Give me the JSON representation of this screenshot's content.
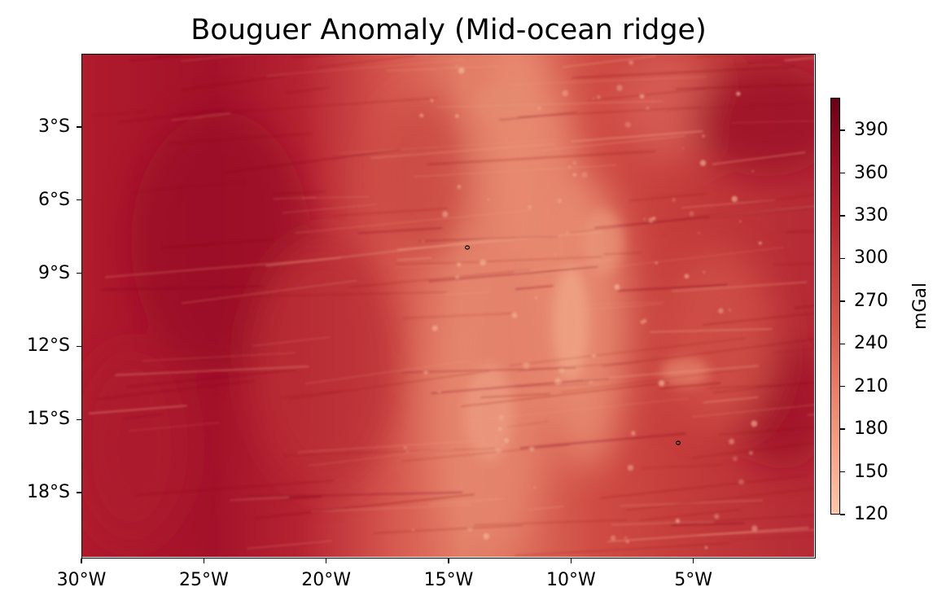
{
  "title": "Bouguer Anomaly (Mid-ocean ridge)",
  "x_axis": {
    "ticks": [
      "30°W",
      "25°W",
      "20°W",
      "15°W",
      "10°W",
      "5°W"
    ],
    "tick_values": [
      -30,
      -25,
      -20,
      -15,
      -10,
      -5
    ],
    "range": [
      -30,
      0
    ]
  },
  "y_axis": {
    "ticks": [
      "3°S",
      "6°S",
      "9°S",
      "12°S",
      "15°S",
      "18°S"
    ],
    "tick_values": [
      -3,
      -6,
      -9,
      -12,
      -15,
      -18
    ],
    "range": [
      -20.7,
      0
    ]
  },
  "colorbar": {
    "label": "mGal",
    "ticks": [
      "390",
      "360",
      "330",
      "300",
      "270",
      "240",
      "210",
      "180",
      "150",
      "120"
    ],
    "tick_values": [
      390,
      360,
      330,
      300,
      270,
      240,
      210,
      180,
      150,
      120
    ],
    "range": [
      120,
      413
    ],
    "colormap": "light-orange-to-dark-red",
    "colors": [
      "#fcc8a8",
      "#f6a483",
      "#ea7f65",
      "#d95749",
      "#c93a3a",
      "#b61e2d",
      "#9c0d25",
      "#6b0016"
    ]
  },
  "chart_data": {
    "type": "heatmap",
    "title": "Bouguer Anomaly (Mid-ocean ridge)",
    "xlabel": "",
    "ylabel": "",
    "colorbar_label": "mGal",
    "xlim": [
      -30,
      0
    ],
    "ylim": [
      -20.7,
      0
    ],
    "clim": [
      120,
      413
    ],
    "x_ticks": [
      -30,
      -25,
      -20,
      -15,
      -10,
      -5
    ],
    "y_ticks": [
      -3,
      -6,
      -9,
      -12,
      -15,
      -18
    ],
    "colorbar_ticks": [
      120,
      150,
      180,
      210,
      240,
      270,
      300,
      330,
      360,
      390
    ],
    "features": [
      {
        "name": "ridge-axis-low",
        "lon_range": [
          -19,
          -11
        ],
        "lat_range": [
          -20.7,
          0
        ],
        "approx_value": 230
      },
      {
        "name": "western-basin-high",
        "lon_range": [
          -30,
          -22
        ],
        "lat_range": [
          -20.7,
          0
        ],
        "approx_value": 340
      },
      {
        "name": "eastern-basin-high",
        "lon_range": [
          -6,
          0
        ],
        "lat_range": [
          -15,
          0
        ],
        "approx_value": 335
      }
    ],
    "islands": [
      {
        "lon": -14.2,
        "lat": -7.9
      },
      {
        "lon": -5.7,
        "lat": -15.9
      }
    ]
  }
}
